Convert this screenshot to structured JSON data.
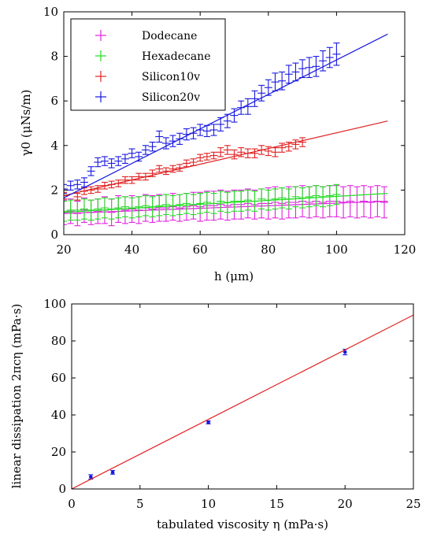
{
  "chart_data": [
    {
      "type": "scatter",
      "xlabel": "h (μm)",
      "ylabel": "γ0 (μNs/m)",
      "xlim": [
        20,
        120
      ],
      "ylim": [
        0,
        10
      ],
      "xticks": [
        "20",
        "40",
        "60",
        "80",
        "100",
        "120"
      ],
      "yticks": [
        "0",
        "2",
        "4",
        "6",
        "8",
        "10"
      ],
      "grid": false,
      "legend_position": "top-left",
      "series": [
        {
          "name": "Dodecane",
          "color": "#e020e0",
          "x": [
            20,
            22,
            24,
            26,
            28,
            30,
            32,
            34,
            36,
            38,
            40,
            42,
            44,
            46,
            48,
            50,
            52,
            54,
            56,
            58,
            60,
            62,
            64,
            66,
            68,
            70,
            72,
            74,
            76,
            78,
            80,
            82,
            84,
            86,
            88,
            90,
            92,
            94,
            96,
            98,
            100,
            102,
            104,
            106,
            108,
            110,
            112,
            114
          ],
          "y": [
            1.0,
            1.05,
            0.95,
            1.1,
            1.0,
            1.05,
            1.1,
            1.0,
            1.15,
            1.1,
            1.15,
            1.1,
            1.2,
            1.15,
            1.2,
            1.2,
            1.25,
            1.2,
            1.25,
            1.3,
            1.25,
            1.3,
            1.3,
            1.35,
            1.3,
            1.35,
            1.35,
            1.4,
            1.35,
            1.4,
            1.4,
            1.45,
            1.4,
            1.45,
            1.45,
            1.5,
            1.45,
            1.5,
            1.45,
            1.5,
            1.5,
            1.45,
            1.5,
            1.45,
            1.5,
            1.45,
            1.5,
            1.45
          ],
          "error": [
            0.55,
            0.55,
            0.55,
            0.55,
            0.55,
            0.55,
            0.6,
            0.6,
            0.6,
            0.6,
            0.6,
            0.6,
            0.6,
            0.6,
            0.6,
            0.6,
            0.6,
            0.6,
            0.6,
            0.6,
            0.65,
            0.65,
            0.65,
            0.65,
            0.65,
            0.65,
            0.65,
            0.65,
            0.65,
            0.65,
            0.7,
            0.7,
            0.7,
            0.7,
            0.7,
            0.7,
            0.7,
            0.7,
            0.7,
            0.7,
            0.7,
            0.7,
            0.7,
            0.7,
            0.7,
            0.7,
            0.7,
            0.7
          ],
          "fit": {
            "x": [
              20,
              115
            ],
            "y": [
              0.95,
              1.5
            ]
          }
        },
        {
          "name": "Hexadecane",
          "color": "#22dd22",
          "x": [
            20,
            22,
            24,
            26,
            28,
            30,
            32,
            34,
            36,
            38,
            40,
            42,
            44,
            46,
            48,
            50,
            52,
            54,
            56,
            58,
            60,
            62,
            64,
            66,
            68,
            70,
            72,
            74,
            76,
            78,
            80,
            82,
            84,
            86,
            88,
            90,
            92,
            94,
            96,
            98,
            100
          ],
          "y": [
            1.05,
            1.1,
            1.1,
            1.15,
            1.1,
            1.15,
            1.2,
            1.15,
            1.2,
            1.25,
            1.2,
            1.25,
            1.3,
            1.25,
            1.3,
            1.35,
            1.3,
            1.35,
            1.4,
            1.35,
            1.4,
            1.45,
            1.4,
            1.5,
            1.45,
            1.5,
            1.5,
            1.55,
            1.5,
            1.6,
            1.55,
            1.6,
            1.65,
            1.6,
            1.7,
            1.65,
            1.7,
            1.75,
            1.7,
            1.75,
            1.8
          ],
          "error": [
            0.45,
            0.45,
            0.45,
            0.45,
            0.45,
            0.45,
            0.45,
            0.45,
            0.45,
            0.45,
            0.45,
            0.45,
            0.45,
            0.45,
            0.45,
            0.45,
            0.45,
            0.45,
            0.45,
            0.45,
            0.45,
            0.45,
            0.45,
            0.45,
            0.45,
            0.45,
            0.45,
            0.45,
            0.45,
            0.45,
            0.45,
            0.45,
            0.45,
            0.45,
            0.45,
            0.45,
            0.45,
            0.45,
            0.45,
            0.45,
            0.45
          ],
          "fit": {
            "x": [
              20,
              115
            ],
            "y": [
              1.0,
              1.85
            ]
          }
        },
        {
          "name": "Silicon10v",
          "color": "#e02020",
          "x": [
            20,
            24,
            26,
            28,
            30,
            32,
            34,
            36,
            38,
            40,
            42,
            44,
            46,
            48,
            50,
            52,
            54,
            56,
            58,
            60,
            62,
            64,
            66,
            68,
            70,
            72,
            74,
            76,
            78,
            80,
            82,
            84,
            86,
            88,
            90
          ],
          "y": [
            1.75,
            1.7,
            1.95,
            2.0,
            2.05,
            2.2,
            2.25,
            2.3,
            2.45,
            2.45,
            2.6,
            2.6,
            2.75,
            2.95,
            2.85,
            2.95,
            3.0,
            3.2,
            3.25,
            3.45,
            3.5,
            3.55,
            3.7,
            3.8,
            3.6,
            3.7,
            3.65,
            3.65,
            3.8,
            3.75,
            3.7,
            3.9,
            3.95,
            4.05,
            4.15
          ],
          "error": [
            0.15,
            0.15,
            0.15,
            0.15,
            0.15,
            0.15,
            0.15,
            0.15,
            0.15,
            0.15,
            0.15,
            0.15,
            0.15,
            0.15,
            0.15,
            0.15,
            0.15,
            0.15,
            0.15,
            0.15,
            0.15,
            0.15,
            0.2,
            0.2,
            0.2,
            0.2,
            0.2,
            0.2,
            0.2,
            0.2,
            0.2,
            0.2,
            0.2,
            0.2,
            0.2
          ],
          "fit": {
            "x": [
              20,
              115
            ],
            "y": [
              1.75,
              5.1
            ]
          }
        },
        {
          "name": "Silicon20v",
          "color": "#1818e0",
          "x": [
            20,
            22,
            24,
            26,
            28,
            30,
            32,
            34,
            36,
            38,
            40,
            42,
            44,
            46,
            48,
            50,
            52,
            54,
            56,
            58,
            60,
            62,
            64,
            66,
            68,
            70,
            72,
            74,
            76,
            78,
            80,
            82,
            84,
            86,
            88,
            90,
            92,
            94,
            96,
            98,
            100
          ],
          "y": [
            2.05,
            2.2,
            2.25,
            2.35,
            2.85,
            3.25,
            3.3,
            3.2,
            3.3,
            3.4,
            3.65,
            3.5,
            3.8,
            3.95,
            4.4,
            4.1,
            4.2,
            4.3,
            4.5,
            4.55,
            4.7,
            4.65,
            4.7,
            4.95,
            5.1,
            5.35,
            5.7,
            5.75,
            6.1,
            6.35,
            6.6,
            6.85,
            6.9,
            7.2,
            7.3,
            7.45,
            7.5,
            7.55,
            7.8,
            7.95,
            8.1
          ],
          "error": [
            0.2,
            0.2,
            0.2,
            0.2,
            0.2,
            0.2,
            0.2,
            0.2,
            0.2,
            0.2,
            0.2,
            0.2,
            0.2,
            0.2,
            0.25,
            0.25,
            0.25,
            0.25,
            0.25,
            0.25,
            0.25,
            0.25,
            0.25,
            0.3,
            0.3,
            0.3,
            0.3,
            0.35,
            0.35,
            0.35,
            0.35,
            0.4,
            0.4,
            0.4,
            0.4,
            0.4,
            0.45,
            0.45,
            0.45,
            0.45,
            0.5
          ],
          "fit": {
            "x": [
              20,
              115
            ],
            "y": [
              1.65,
              9.0
            ]
          }
        }
      ]
    },
    {
      "type": "scatter",
      "xlabel": "tabulated viscosity η (mPa·s)",
      "ylabel": "linear dissipation 2πcη (mPa·s)",
      "xlim": [
        0,
        25
      ],
      "ylim": [
        0,
        100
      ],
      "xticks": [
        "0",
        "5",
        "10",
        "15",
        "20",
        "25"
      ],
      "yticks": [
        "0",
        "20",
        "40",
        "60",
        "80",
        "100"
      ],
      "grid": false,
      "series": [
        {
          "color": "#1818e0",
          "x": [
            1.4,
            3.0,
            10.0,
            20.0
          ],
          "y": [
            6.5,
            9.0,
            36.0,
            74.0
          ],
          "error": [
            1.2,
            1.0,
            0.8,
            1.5
          ],
          "fit": {
            "x": [
              0,
              25
            ],
            "y": [
              0,
              94
            ]
          },
          "fit_color": "#e02020"
        }
      ]
    }
  ]
}
